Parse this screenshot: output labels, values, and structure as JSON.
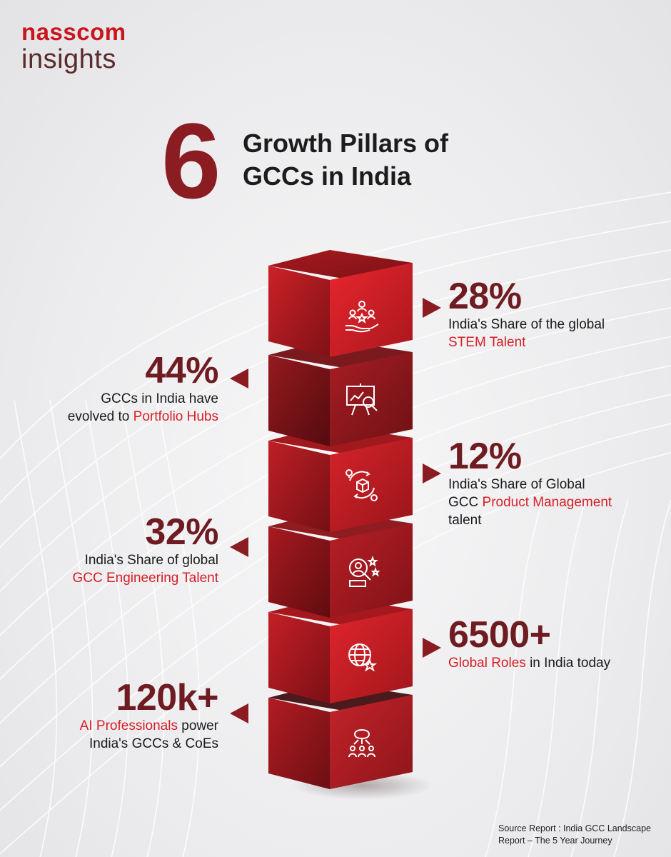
{
  "logo": {
    "brand": "nasscom",
    "sub": "insights"
  },
  "title": {
    "number": "6",
    "line1": "Growth Pillars of",
    "line2": "GCCs in India"
  },
  "colors": {
    "brand_red": "#c8161d",
    "dark_red": "#6e1c22",
    "highlight": "#d61f26",
    "text": "#1a1a1a"
  },
  "pillars": [
    {
      "icon": "talent-hand-stars-icon",
      "side": "right",
      "value": "28%",
      "desc_pre": "India's Share of the global",
      "highlight": "STEM Talent",
      "desc_post": ""
    },
    {
      "icon": "presentation-analysis-icon",
      "side": "left",
      "value": "44%",
      "desc_pre": "GCCs in India have",
      "desc_mid": "evolved to",
      "highlight": "Portfolio Hubs",
      "desc_post": ""
    },
    {
      "icon": "product-cycle-gear-icon",
      "side": "right",
      "value": "12%",
      "desc_pre": "India's Share of Global",
      "desc_mid": "GCC",
      "highlight": "Product Management",
      "desc_post": "talent"
    },
    {
      "icon": "engineer-search-stars-icon",
      "side": "left",
      "value": "32%",
      "desc_pre": "India's Share of global",
      "highlight": "GCC Engineering Talent",
      "desc_post": ""
    },
    {
      "icon": "globe-star-icon",
      "side": "right",
      "value": "6500+",
      "highlight": "Global Roles",
      "desc_post": "in India today"
    },
    {
      "icon": "ai-brain-people-icon",
      "side": "left",
      "value": "120k+",
      "highlight": "AI Professionals",
      "desc_post": "power",
      "desc_line2": "India's GCCs & CoEs"
    }
  ],
  "source": {
    "line1": "Source Report : India GCC Landscape",
    "line2": "Report – The 5 Year Journey"
  }
}
